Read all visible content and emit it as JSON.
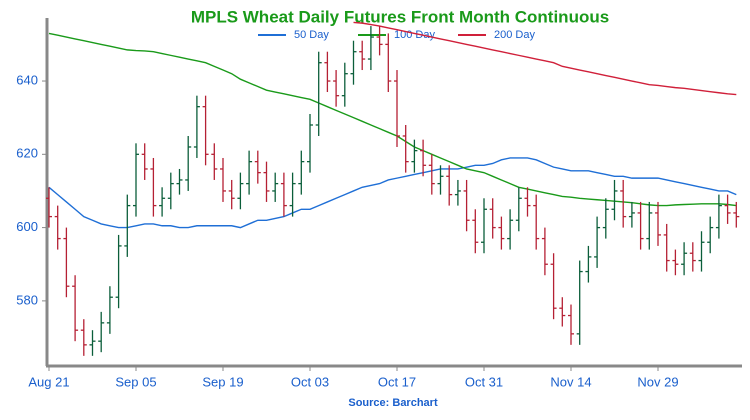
{
  "chart_data": {
    "type": "ohlc",
    "title": "MPLS Wheat Daily Futures Front Month Continuous",
    "source": "Source: Barchart",
    "categories": [
      "Aug 21",
      null,
      null,
      null,
      null,
      null,
      null,
      null,
      null,
      null,
      "Sep 05",
      null,
      null,
      null,
      null,
      null,
      null,
      null,
      null,
      null,
      "Sep 19",
      null,
      null,
      null,
      null,
      null,
      null,
      null,
      null,
      null,
      "Oct 03",
      null,
      null,
      null,
      null,
      null,
      null,
      null,
      null,
      null,
      "Oct 17",
      null,
      null,
      null,
      null,
      null,
      null,
      null,
      null,
      null,
      "Oct 31",
      null,
      null,
      null,
      null,
      null,
      null,
      null,
      null,
      null,
      "Nov 14",
      null,
      null,
      null,
      null,
      null,
      null,
      null,
      null,
      null,
      "Nov 29",
      null,
      null,
      null,
      null,
      null,
      null,
      null,
      null,
      null
    ],
    "open": [
      608,
      603,
      597,
      584,
      572,
      568,
      569,
      574,
      581,
      595,
      606,
      620,
      616,
      606,
      608,
      612,
      613,
      622,
      633,
      620,
      616,
      610,
      608,
      612,
      618,
      615,
      610,
      612,
      606,
      612,
      618,
      628,
      645,
      640,
      636,
      642,
      648,
      646,
      652,
      650,
      640,
      625,
      618,
      621,
      617,
      612,
      614,
      609,
      610,
      602,
      596,
      605,
      600,
      597,
      602,
      608,
      606,
      597,
      590,
      578,
      576,
      571,
      588,
      592,
      600,
      605,
      610,
      603,
      604,
      597,
      604,
      598,
      591,
      590,
      593,
      591,
      596,
      600,
      606,
      604
    ],
    "high": [
      611,
      606,
      600,
      587,
      575,
      572,
      577,
      584,
      598,
      609,
      623,
      623,
      619,
      611,
      615,
      616,
      625,
      636,
      636,
      623,
      619,
      613,
      615,
      621,
      621,
      618,
      615,
      615,
      615,
      621,
      631,
      648,
      648,
      643,
      645,
      651,
      651,
      655,
      655,
      653,
      643,
      628,
      624,
      624,
      620,
      617,
      617,
      613,
      613,
      605,
      608,
      608,
      603,
      605,
      611,
      611,
      609,
      600,
      593,
      581,
      579,
      591,
      595,
      603,
      608,
      613,
      613,
      607,
      607,
      607,
      607,
      601,
      594,
      596,
      596,
      599,
      603,
      609,
      609,
      607
    ],
    "low": [
      600,
      594,
      581,
      569,
      565,
      565,
      566,
      571,
      578,
      592,
      603,
      613,
      603,
      603,
      605,
      609,
      610,
      619,
      617,
      613,
      607,
      605,
      605,
      609,
      612,
      607,
      607,
      603,
      603,
      609,
      615,
      625,
      637,
      633,
      633,
      639,
      643,
      643,
      647,
      637,
      622,
      615,
      615,
      614,
      609,
      609,
      606,
      606,
      599,
      593,
      593,
      597,
      594,
      594,
      599,
      603,
      594,
      587,
      575,
      573,
      568,
      568,
      585,
      589,
      597,
      602,
      600,
      600,
      594,
      594,
      595,
      588,
      587,
      587,
      588,
      588,
      593,
      597,
      601,
      600
    ],
    "close": [
      603,
      597,
      584,
      572,
      568,
      569,
      574,
      581,
      595,
      606,
      620,
      616,
      606,
      608,
      612,
      613,
      622,
      633,
      620,
      616,
      610,
      608,
      612,
      618,
      615,
      610,
      612,
      606,
      612,
      618,
      628,
      645,
      640,
      636,
      642,
      648,
      646,
      652,
      650,
      640,
      625,
      618,
      621,
      617,
      612,
      614,
      609,
      610,
      602,
      596,
      605,
      600,
      597,
      602,
      608,
      606,
      597,
      590,
      578,
      576,
      571,
      588,
      592,
      600,
      605,
      610,
      603,
      604,
      597,
      604,
      598,
      591,
      590,
      593,
      591,
      596,
      600,
      606,
      604,
      603
    ],
    "up_color": "#0b5e3a",
    "down_color": "#b52034",
    "series": [
      {
        "name": "50 Day",
        "color": "#1f6fd6",
        "values": [
          611,
          609,
          607,
          605,
          603,
          602,
          601,
          600.5,
          600,
          600,
          600.5,
          601,
          601,
          600.5,
          600.5,
          600,
          600,
          600.5,
          600.5,
          600.5,
          600.5,
          600.5,
          600,
          601,
          602,
          602,
          602.5,
          603,
          604,
          605,
          605,
          606,
          607,
          608,
          609,
          610,
          611,
          611.5,
          612,
          613,
          613.5,
          614,
          614.5,
          615,
          615.5,
          616,
          616,
          616,
          616.5,
          617,
          617,
          617.5,
          618.5,
          619,
          619,
          619,
          618.5,
          617.5,
          616.5,
          616,
          615.5,
          615.5,
          615.5,
          615,
          614.5,
          614,
          614,
          613.5,
          613.5,
          613.5,
          613.5,
          613,
          612.5,
          612,
          611.5,
          611,
          610.5,
          610,
          610,
          609
        ]
      },
      {
        "name": "100 Day",
        "color": "#1a9a1a",
        "values": [
          653,
          652.5,
          652,
          651.5,
          651,
          650.5,
          650,
          649.5,
          649,
          648.5,
          648.3,
          648.2,
          648,
          647.5,
          647,
          646.5,
          646,
          645.5,
          645,
          644,
          643,
          642,
          640.5,
          639.5,
          638.5,
          637.5,
          637,
          636.5,
          636,
          635.5,
          635,
          634,
          633,
          632,
          631,
          630,
          629,
          628,
          627,
          626,
          625,
          623.5,
          622,
          621,
          620,
          619,
          618,
          617,
          616,
          615.5,
          615,
          614,
          613,
          612,
          611,
          610.5,
          610,
          609.5,
          609,
          608.5,
          608.3,
          608,
          607.8,
          607.6,
          607.4,
          607.2,
          607,
          606.8,
          606.5,
          606.2,
          606,
          606,
          606.2,
          606.3,
          606.4,
          606.5,
          606.5,
          606.5,
          606.3,
          606
        ]
      },
      {
        "name": "200 Day",
        "color": "#d0203a",
        "values": [
          null,
          null,
          null,
          null,
          null,
          null,
          null,
          null,
          null,
          null,
          null,
          null,
          null,
          null,
          null,
          null,
          null,
          null,
          null,
          null,
          null,
          null,
          null,
          null,
          null,
          null,
          null,
          null,
          null,
          null,
          null,
          null,
          null,
          null,
          null,
          656,
          655.8,
          655.4,
          655,
          654.5,
          654,
          653.5,
          653,
          652.5,
          652,
          651.5,
          651,
          650.5,
          650,
          649.5,
          649,
          648.5,
          648,
          647.5,
          647,
          646.5,
          646,
          645.5,
          645,
          644,
          643.5,
          643,
          642.5,
          642,
          641.5,
          641,
          640.5,
          640,
          639.5,
          639,
          638.8,
          638.5,
          638.2,
          638,
          637.7,
          637.4,
          637.1,
          636.8,
          636.5,
          636.3
        ]
      }
    ],
    "ylim": [
      562.5,
      657.2
    ],
    "yticks": [
      580,
      600,
      620,
      640
    ]
  }
}
